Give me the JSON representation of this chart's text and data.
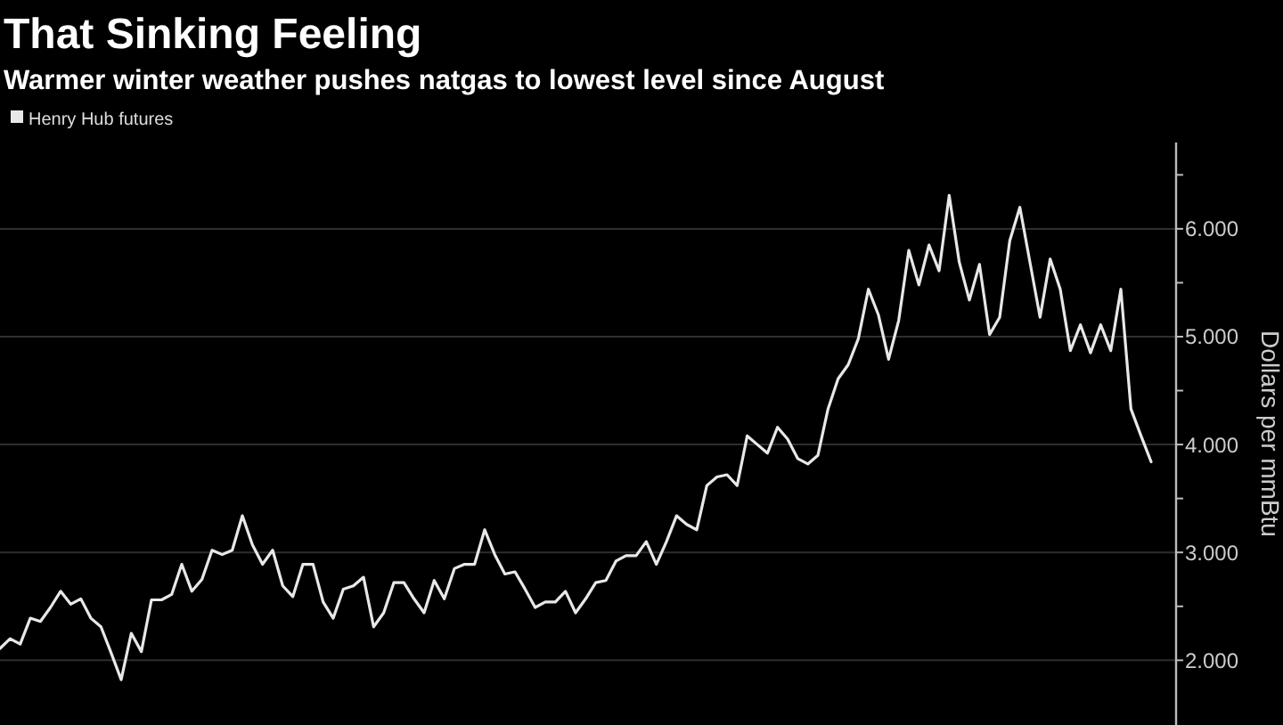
{
  "chart_data": {
    "type": "line",
    "title": "That Sinking Feeling",
    "subtitle": "Warmer winter weather pushes natgas to lowest level since August",
    "ylabel": "Dollars per mmBtu",
    "legend": "top left",
    "grid": "y",
    "categories": [
      null,
      null,
      null,
      null,
      null,
      null,
      null,
      null,
      null,
      null,
      null,
      null,
      null,
      null,
      null,
      null,
      null,
      null,
      null,
      null,
      null,
      null,
      null,
      null,
      null,
      null,
      null,
      null,
      null,
      null,
      null,
      null,
      null,
      null,
      null,
      null,
      null,
      null,
      null,
      null,
      null,
      null,
      null,
      null,
      null,
      null,
      null,
      null,
      null,
      null,
      null,
      null,
      null,
      null,
      null,
      null,
      null,
      null,
      null,
      null,
      null,
      null,
      null,
      null,
      null,
      null,
      null,
      null,
      null,
      null,
      null,
      null,
      null,
      null,
      null,
      null,
      null,
      null,
      null,
      null,
      null,
      null,
      null,
      null,
      null,
      null,
      null,
      null,
      null,
      null,
      null,
      null,
      null,
      null,
      null,
      null,
      null,
      null,
      null,
      null,
      null,
      null,
      null,
      null,
      null,
      null,
      null,
      null,
      null,
      null,
      null,
      null,
      null,
      null,
      null
    ],
    "ylim": [
      1.4,
      6.8
    ],
    "yticks": [
      {
        "value": 2,
        "label": "2.000"
      },
      {
        "value": 2.5,
        "label": null
      },
      {
        "value": 3,
        "label": "3.000"
      },
      {
        "value": 3.5,
        "label": null
      },
      {
        "value": 4,
        "label": "4.000"
      },
      {
        "value": 4.5,
        "label": null
      },
      {
        "value": 5,
        "label": "5.000"
      },
      {
        "value": 5.5,
        "label": null
      },
      {
        "value": 6,
        "label": "6.000"
      },
      {
        "value": 6.5,
        "label": null
      }
    ],
    "series": [
      {
        "name": "Henry Hub futures",
        "color": "#e8e8e8",
        "values": [
          2.11,
          2.2,
          2.15,
          2.39,
          2.36,
          2.49,
          2.64,
          2.52,
          2.57,
          2.39,
          2.31,
          2.07,
          1.82,
          2.25,
          2.08,
          2.56,
          2.56,
          2.61,
          2.89,
          2.64,
          2.75,
          3.02,
          2.98,
          3.02,
          3.34,
          3.07,
          2.89,
          3.02,
          2.69,
          2.59,
          2.89,
          2.89,
          2.54,
          2.39,
          2.66,
          2.69,
          2.77,
          2.31,
          2.44,
          2.72,
          2.72,
          2.57,
          2.44,
          2.74,
          2.57,
          2.85,
          2.89,
          2.89,
          3.21,
          2.98,
          2.8,
          2.82,
          2.66,
          2.49,
          2.54,
          2.54,
          2.64,
          2.44,
          2.57,
          2.72,
          2.74,
          2.92,
          2.97,
          2.97,
          3.1,
          2.89,
          3.1,
          3.34,
          3.26,
          3.21,
          3.62,
          3.7,
          3.72,
          3.62,
          4.08,
          4.0,
          3.92,
          4.16,
          4.05,
          3.87,
          3.82,
          3.9,
          4.33,
          4.61,
          4.74,
          4.98,
          5.44,
          5.2,
          4.79,
          5.15,
          5.8,
          5.48,
          5.85,
          5.61,
          6.31,
          5.69,
          5.34,
          5.67,
          5.02,
          5.18,
          5.89,
          6.2,
          5.69,
          5.18,
          5.72,
          5.44,
          4.87,
          5.11,
          4.85,
          5.11,
          4.87,
          5.44,
          4.33,
          4.08,
          3.84
        ]
      }
    ]
  }
}
